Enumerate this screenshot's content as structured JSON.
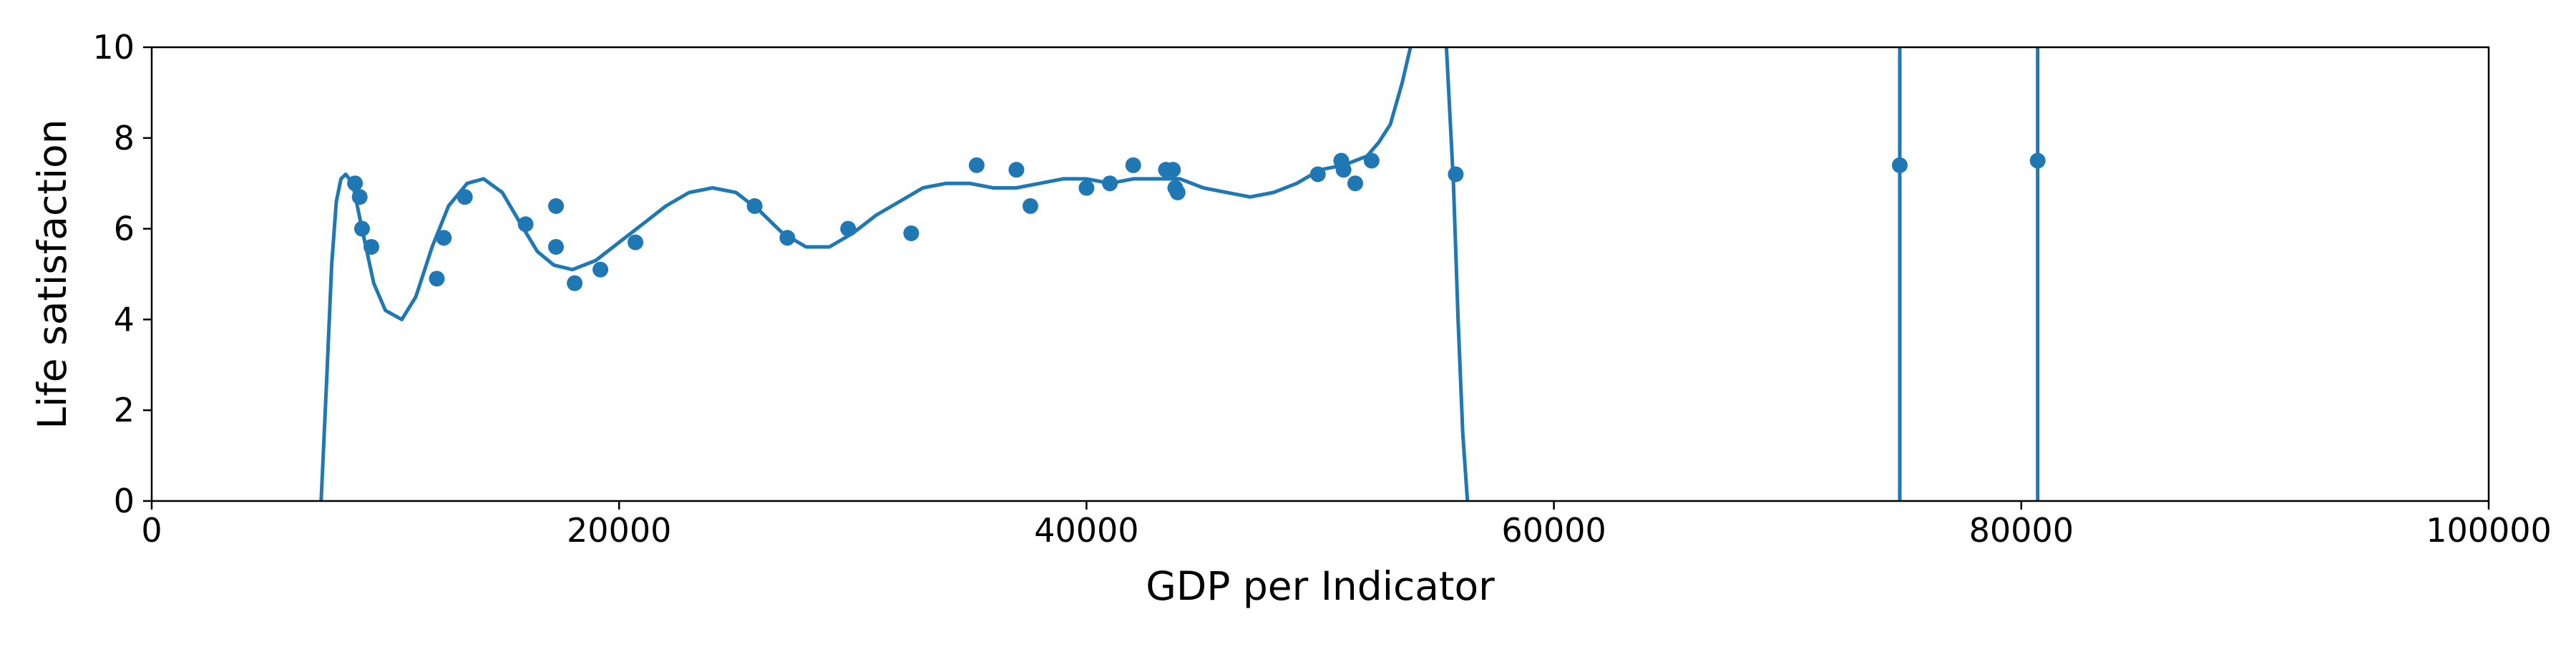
{
  "chart_data": {
    "type": "scatter",
    "title": "",
    "xlabel": "GDP per Indicator",
    "ylabel": "Life satisfaction",
    "xlim": [
      0,
      100000
    ],
    "ylim": [
      0,
      10
    ],
    "grid": false,
    "color": "#1f77b4",
    "x_ticks": [
      0,
      20000,
      40000,
      60000,
      80000,
      100000
    ],
    "y_ticks": [
      0,
      2,
      4,
      6,
      8,
      10
    ],
    "x_tick_labels": [
      "0",
      "20000",
      "40000",
      "60000",
      "80000",
      "100000"
    ],
    "y_tick_labels": [
      "0",
      "2",
      "4",
      "6",
      "8",
      "10"
    ],
    "points": [
      [
        8700,
        7.0
      ],
      [
        8900,
        6.7
      ],
      [
        9000,
        6.0
      ],
      [
        9400,
        5.6
      ],
      [
        12200,
        4.9
      ],
      [
        12500,
        5.8
      ],
      [
        13400,
        6.7
      ],
      [
        16000,
        6.1
      ],
      [
        17300,
        6.5
      ],
      [
        17300,
        5.6
      ],
      [
        18100,
        4.8
      ],
      [
        19200,
        5.1
      ],
      [
        20700,
        5.7
      ],
      [
        25800,
        6.5
      ],
      [
        27200,
        5.8
      ],
      [
        29800,
        6.0
      ],
      [
        32500,
        5.9
      ],
      [
        35300,
        7.4
      ],
      [
        37000,
        7.3
      ],
      [
        37600,
        6.5
      ],
      [
        40000,
        6.9
      ],
      [
        41000,
        7.0
      ],
      [
        42000,
        7.4
      ],
      [
        43400,
        7.3
      ],
      [
        43700,
        7.3
      ],
      [
        43800,
        6.9
      ],
      [
        43900,
        6.8
      ],
      [
        49900,
        7.2
      ],
      [
        50900,
        7.5
      ],
      [
        51000,
        7.3
      ],
      [
        51500,
        7.0
      ],
      [
        52200,
        7.5
      ],
      [
        55800,
        7.2
      ],
      [
        74800,
        7.4
      ],
      [
        80700,
        7.5
      ]
    ],
    "fit_curve": {
      "x": [
        7250,
        7500,
        7700,
        7900,
        8100,
        8300,
        8600,
        9000,
        9500,
        10000,
        10700,
        11300,
        12000,
        12700,
        13500,
        14200,
        15000,
        15800,
        16500,
        17200,
        18000,
        19000,
        20000,
        21000,
        22000,
        23000,
        24000,
        25000,
        26000,
        27000,
        28000,
        29000,
        30000,
        31000,
        32000,
        33000,
        34000,
        35000,
        36000,
        37000,
        38000,
        39000,
        40000,
        41000,
        42000,
        43000,
        44000,
        45000,
        46000,
        47000,
        48000,
        49000,
        50000,
        51000,
        52000,
        52500,
        53000,
        53500,
        54000,
        54500,
        55000,
        55400,
        55700,
        55900,
        56100,
        56300
      ],
      "y": [
        0,
        2.8,
        5.2,
        6.6,
        7.1,
        7.2,
        7.0,
        6.0,
        4.8,
        4.2,
        4.0,
        4.5,
        5.6,
        6.5,
        7.0,
        7.1,
        6.8,
        6.1,
        5.5,
        5.2,
        5.1,
        5.3,
        5.7,
        6.1,
        6.5,
        6.8,
        6.9,
        6.8,
        6.4,
        5.9,
        5.6,
        5.6,
        5.9,
        6.3,
        6.6,
        6.9,
        7.0,
        7.0,
        6.9,
        6.9,
        7.0,
        7.1,
        7.1,
        7.0,
        7.1,
        7.1,
        7.1,
        6.9,
        6.8,
        6.7,
        6.8,
        7.0,
        7.3,
        7.4,
        7.6,
        7.9,
        8.3,
        9.2,
        10.3,
        11.0,
        11.0,
        10.0,
        7.0,
        4.0,
        1.5,
        0
      ]
    },
    "vertical_lines": [
      74800,
      80700
    ]
  }
}
